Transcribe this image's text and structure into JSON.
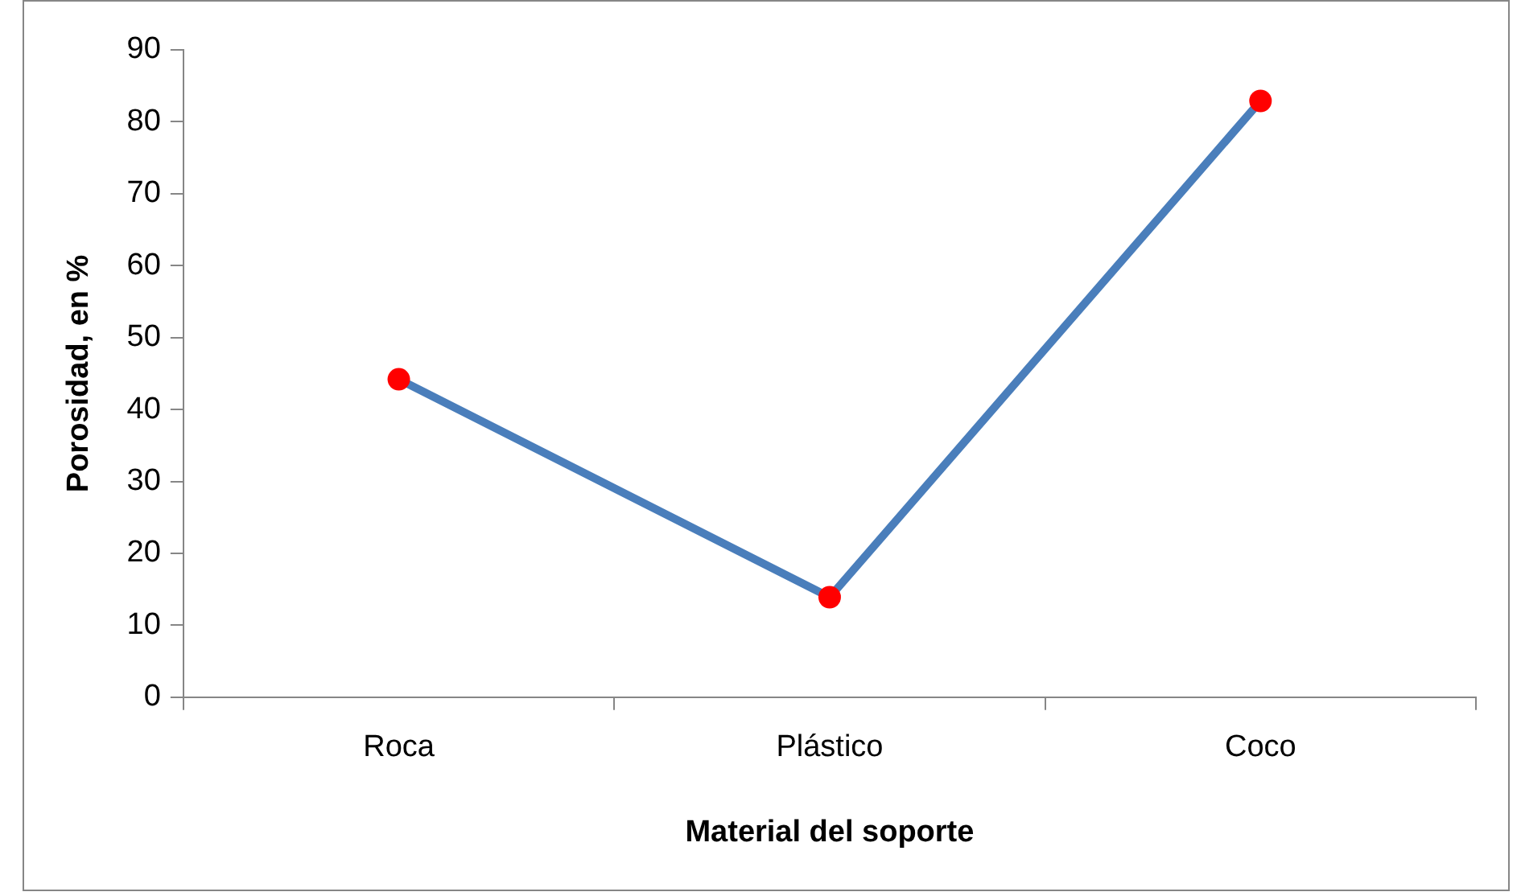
{
  "chart_data": {
    "type": "line",
    "xlabel": "Material del soporte",
    "ylabel": "Porosidad, en %",
    "categories": [
      "Roca",
      "Plástico",
      "Coco"
    ],
    "series": [
      {
        "color": "#4a7ebb",
        "colors": [
          "#ff0000",
          "#ff0000",
          "#ff0000"
        ],
        "values": [
          44.2,
          13.9,
          82.9
        ]
      }
    ],
    "marker": "circle",
    "ylim": [
      0,
      90
    ],
    "yticks": [
      0,
      10,
      20,
      30,
      40,
      50,
      60,
      70,
      80,
      90
    ],
    "grid": false,
    "legend": false
  }
}
